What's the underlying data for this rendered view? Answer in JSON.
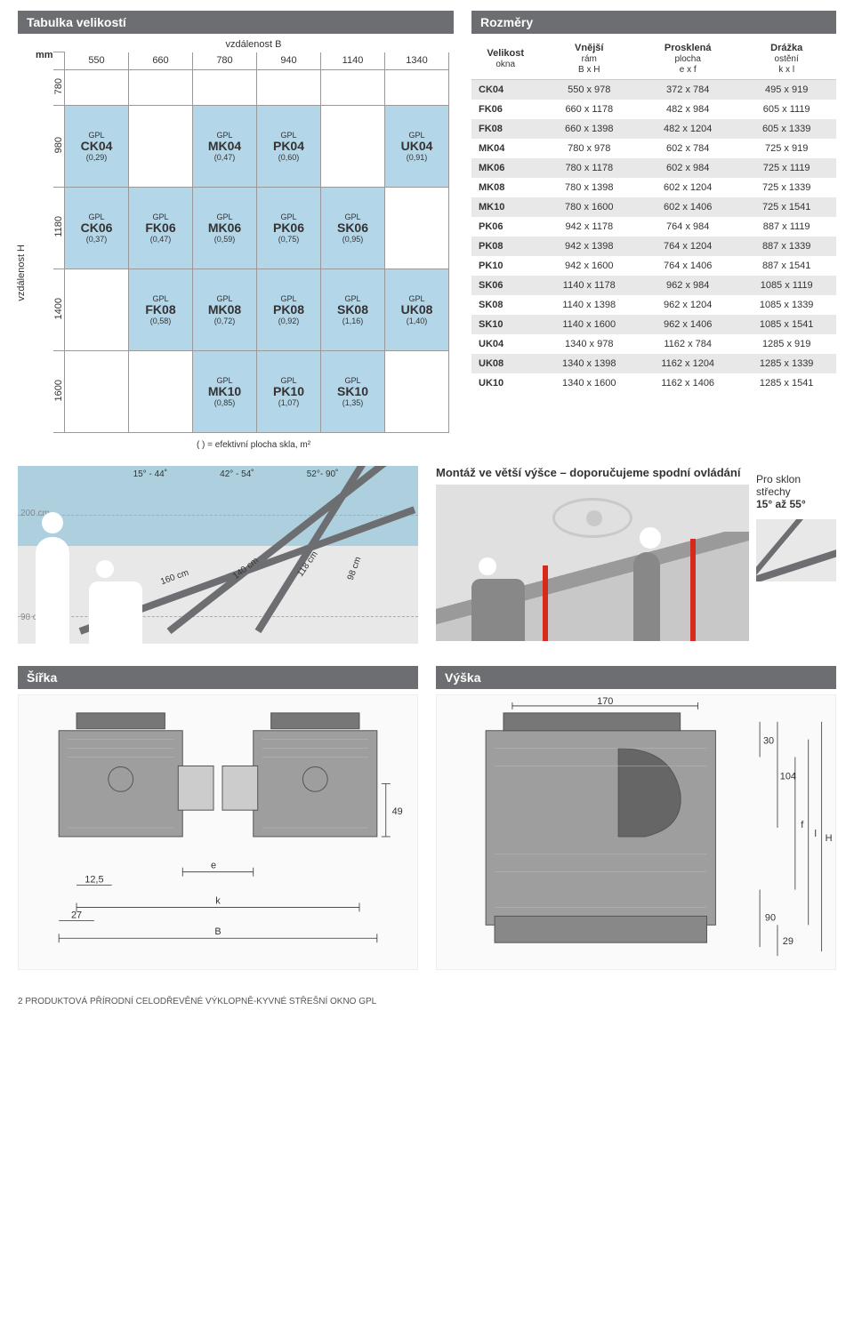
{
  "headers": {
    "sizes": "Tabulka velikostí",
    "dims": "Rozměry",
    "width": "Šířka",
    "height": "Výška"
  },
  "sizeGrid": {
    "mm": "mm",
    "topLabel": "vzdálenost B",
    "leftLabel": "vzdálenost H",
    "cols": [
      "550",
      "660",
      "780",
      "940",
      "1140",
      "1340"
    ],
    "rows": [
      "780",
      "980",
      "1180",
      "1400",
      "1600"
    ],
    "prefix": "GPL",
    "cells": {
      "r1": [
        {
          "f": true,
          "code": "CK04",
          "area": "(0,29)"
        },
        null,
        {
          "f": true,
          "code": "MK04",
          "area": "(0,47)"
        },
        {
          "f": true,
          "code": "PK04",
          "area": "(0,60)"
        },
        null,
        {
          "f": true,
          "code": "UK04",
          "area": "(0,91)"
        }
      ],
      "r2": [
        {
          "f": true,
          "code": "CK06",
          "area": "(0,37)"
        },
        {
          "f": true,
          "code": "FK06",
          "area": "(0,47)"
        },
        {
          "f": true,
          "code": "MK06",
          "area": "(0,59)"
        },
        {
          "f": true,
          "code": "PK06",
          "area": "(0,75)"
        },
        {
          "f": true,
          "code": "SK06",
          "area": "(0,95)"
        },
        null
      ],
      "r3": [
        null,
        {
          "f": true,
          "code": "FK08",
          "area": "(0,58)"
        },
        {
          "f": true,
          "code": "MK08",
          "area": "(0,72)"
        },
        {
          "f": true,
          "code": "PK08",
          "area": "(0,92)"
        },
        {
          "f": true,
          "code": "SK08",
          "area": "(1,16)"
        },
        {
          "f": true,
          "code": "UK08",
          "area": "(1,40)"
        }
      ],
      "r4": [
        null,
        null,
        {
          "f": true,
          "code": "MK10",
          "area": "(0,85)"
        },
        {
          "f": true,
          "code": "PK10",
          "area": "(1,07)"
        },
        {
          "f": true,
          "code": "SK10",
          "area": "(1,35)"
        },
        null
      ]
    },
    "footnote": "( ) = efektivní plocha skla, m²"
  },
  "dimTable": {
    "headers": [
      {
        "t": "Velikost",
        "s": "okna"
      },
      {
        "t": "Vnější",
        "s": "rám",
        "s2": "B x H"
      },
      {
        "t": "Prosklená",
        "s": "plocha",
        "s2": "e x f"
      },
      {
        "t": "Drážka",
        "s": "ostění",
        "s2": "k x l"
      }
    ],
    "rows": [
      {
        "shade": true,
        "c": [
          "CK04",
          "550 x 978",
          "372 x 784",
          "495 x 919"
        ]
      },
      {
        "shade": false,
        "c": [
          "FK06",
          "660 x 1178",
          "482 x 984",
          "605 x 1119"
        ]
      },
      {
        "shade": true,
        "c": [
          "FK08",
          "660 x 1398",
          "482 x 1204",
          "605 x 1339"
        ]
      },
      {
        "shade": false,
        "c": [
          "MK04",
          "780 x 978",
          "602 x 784",
          "725 x 919"
        ]
      },
      {
        "shade": true,
        "c": [
          "MK06",
          "780 x 1178",
          "602 x 984",
          "725 x 1119"
        ]
      },
      {
        "shade": false,
        "c": [
          "MK08",
          "780 x 1398",
          "602 x 1204",
          "725 x 1339"
        ]
      },
      {
        "shade": true,
        "c": [
          "MK10",
          "780 x 1600",
          "602 x 1406",
          "725 x 1541"
        ]
      },
      {
        "shade": false,
        "c": [
          "PK06",
          "942 x 1178",
          "764 x 984",
          "887 x 1119"
        ]
      },
      {
        "shade": true,
        "c": [
          "PK08",
          "942 x 1398",
          "764 x 1204",
          "887 x 1339"
        ]
      },
      {
        "shade": false,
        "c": [
          "PK10",
          "942 x 1600",
          "764 x 1406",
          "887 x 1541"
        ]
      },
      {
        "shade": true,
        "c": [
          "SK06",
          "1140 x 1178",
          "962 x 984",
          "1085 x 1119"
        ]
      },
      {
        "shade": false,
        "c": [
          "SK08",
          "1140 x 1398",
          "962 x 1204",
          "1085 x 1339"
        ]
      },
      {
        "shade": true,
        "c": [
          "SK10",
          "1140 x 1600",
          "962 x 1406",
          "1085 x 1541"
        ]
      },
      {
        "shade": false,
        "c": [
          "UK04",
          "1340 x 978",
          "1162 x 784",
          "1285 x 919"
        ]
      },
      {
        "shade": true,
        "c": [
          "UK08",
          "1340 x 1398",
          "1162 x 1204",
          "1285 x 1339"
        ]
      },
      {
        "shade": false,
        "c": [
          "UK10",
          "1340 x 1600",
          "1162 x 1406",
          "1285 x 1541"
        ]
      }
    ]
  },
  "montage": {
    "title": "Montáž ve větší výšce – doporučujeme spodní ovládání",
    "angles": [
      "15° - 44˚",
      "42° - 54˚",
      "52°- 90˚"
    ],
    "cm200": "200 cm",
    "cm90": "90 cm",
    "cmLabels": [
      "160 cm",
      "140 cm",
      "118 cm",
      "98 cm"
    ],
    "sklon1": "Pro sklon",
    "sklon2": "střechy",
    "sklon3": "15° až 55°"
  },
  "techDims": {
    "width": {
      "e": "e",
      "d125": "12,5",
      "d27": "27",
      "k": "k",
      "B": "B",
      "d49": "49"
    },
    "height": {
      "d170": "170",
      "d30": "30",
      "d104": "104",
      "f": "f",
      "l": "l",
      "H": "H",
      "d90": "90",
      "d29": "29"
    }
  },
  "footer": "2   PRODUKTOVÁ PŘÍRODNÍ CELODŘEVĚNÉ VÝKLOPNĚ-KYVNÉ STŘEŠNÍ OKNO GPL"
}
